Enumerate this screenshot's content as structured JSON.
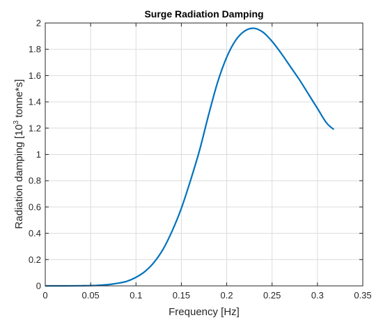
{
  "chart_data": {
    "type": "line",
    "title": "Surge Radiation Damping",
    "xlabel": "Frequency [Hz]",
    "ylabel_main": "Radiation damping [10",
    "ylabel_sup": "3",
    "ylabel_end": " tonne*s]",
    "xlim": [
      0,
      0.35
    ],
    "ylim": [
      0,
      2
    ],
    "xticks": [
      0,
      0.05,
      0.1,
      0.15,
      0.2,
      0.25,
      0.3,
      0.35
    ],
    "xtick_labels": [
      "0",
      "0.05",
      "0.1",
      "0.15",
      "0.2",
      "0.25",
      "0.3",
      "0.35"
    ],
    "yticks": [
      0,
      0.2,
      0.4,
      0.6,
      0.8,
      1,
      1.2,
      1.4,
      1.6,
      1.8,
      2
    ],
    "ytick_labels": [
      "0",
      "0.2",
      "0.4",
      "0.6",
      "0.8",
      "1",
      "1.2",
      "1.4",
      "1.6",
      "1.8",
      "2"
    ],
    "grid": true,
    "line_color": "#0072BD",
    "series": [
      {
        "x": [
          0,
          0.02,
          0.04,
          0.05,
          0.06,
          0.07,
          0.08,
          0.09,
          0.1,
          0.11,
          0.12,
          0.13,
          0.14,
          0.15,
          0.16,
          0.17,
          0.18,
          0.19,
          0.2,
          0.21,
          0.22,
          0.23,
          0.24,
          0.25,
          0.26,
          0.27,
          0.28,
          0.29,
          0.3,
          0.31,
          0.318
        ],
        "y": [
          0,
          0,
          0.001,
          0.002,
          0.005,
          0.01,
          0.02,
          0.035,
          0.065,
          0.11,
          0.18,
          0.28,
          0.42,
          0.59,
          0.8,
          1.03,
          1.3,
          1.55,
          1.74,
          1.87,
          1.94,
          1.96,
          1.93,
          1.86,
          1.77,
          1.67,
          1.57,
          1.46,
          1.35,
          1.24,
          1.19
        ]
      }
    ]
  }
}
